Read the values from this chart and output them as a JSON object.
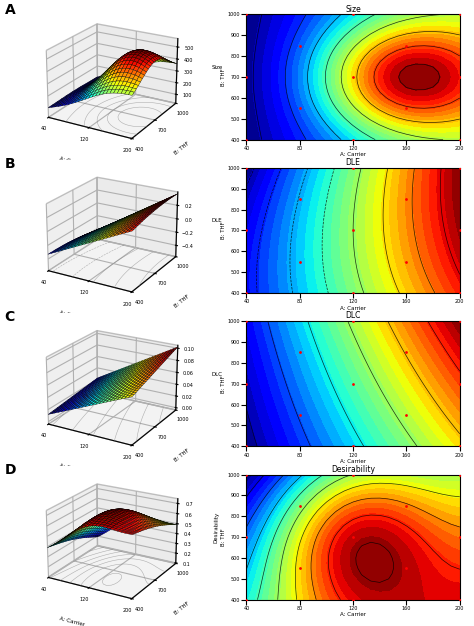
{
  "rows": [
    "A",
    "B",
    "C",
    "D"
  ],
  "titles_contour": [
    "Size",
    "DLE",
    "DLC",
    "Desirability"
  ],
  "zlabels_3d": [
    "Size",
    "DLE",
    "DLC",
    "Desirability"
  ],
  "xlabel_3d": "A: Carrier",
  "ylabel_3d": "B: THF",
  "xlabel_contour": "A: Carrier",
  "ylabel_contour": "B: THF",
  "x_range": [
    40,
    200
  ],
  "y_range": [
    400,
    1000
  ],
  "fig_bg": "#ffffff",
  "row_label_fontsize": 10,
  "title_fontsize": 5.5,
  "axis_label_fontsize": 4,
  "tick_fontsize": 3.5,
  "contour_x_ticks": [
    40,
    80,
    120,
    160,
    200
  ],
  "contour_y_ticks": [
    400,
    500,
    600,
    700,
    800,
    900,
    1000
  ],
  "data_points_x": [
    40,
    40,
    40,
    120,
    120,
    120,
    200,
    200,
    200,
    80,
    160,
    80,
    160
  ],
  "data_points_y": [
    400,
    700,
    1000,
    400,
    700,
    1000,
    400,
    700,
    1000,
    550,
    550,
    850,
    850
  ]
}
